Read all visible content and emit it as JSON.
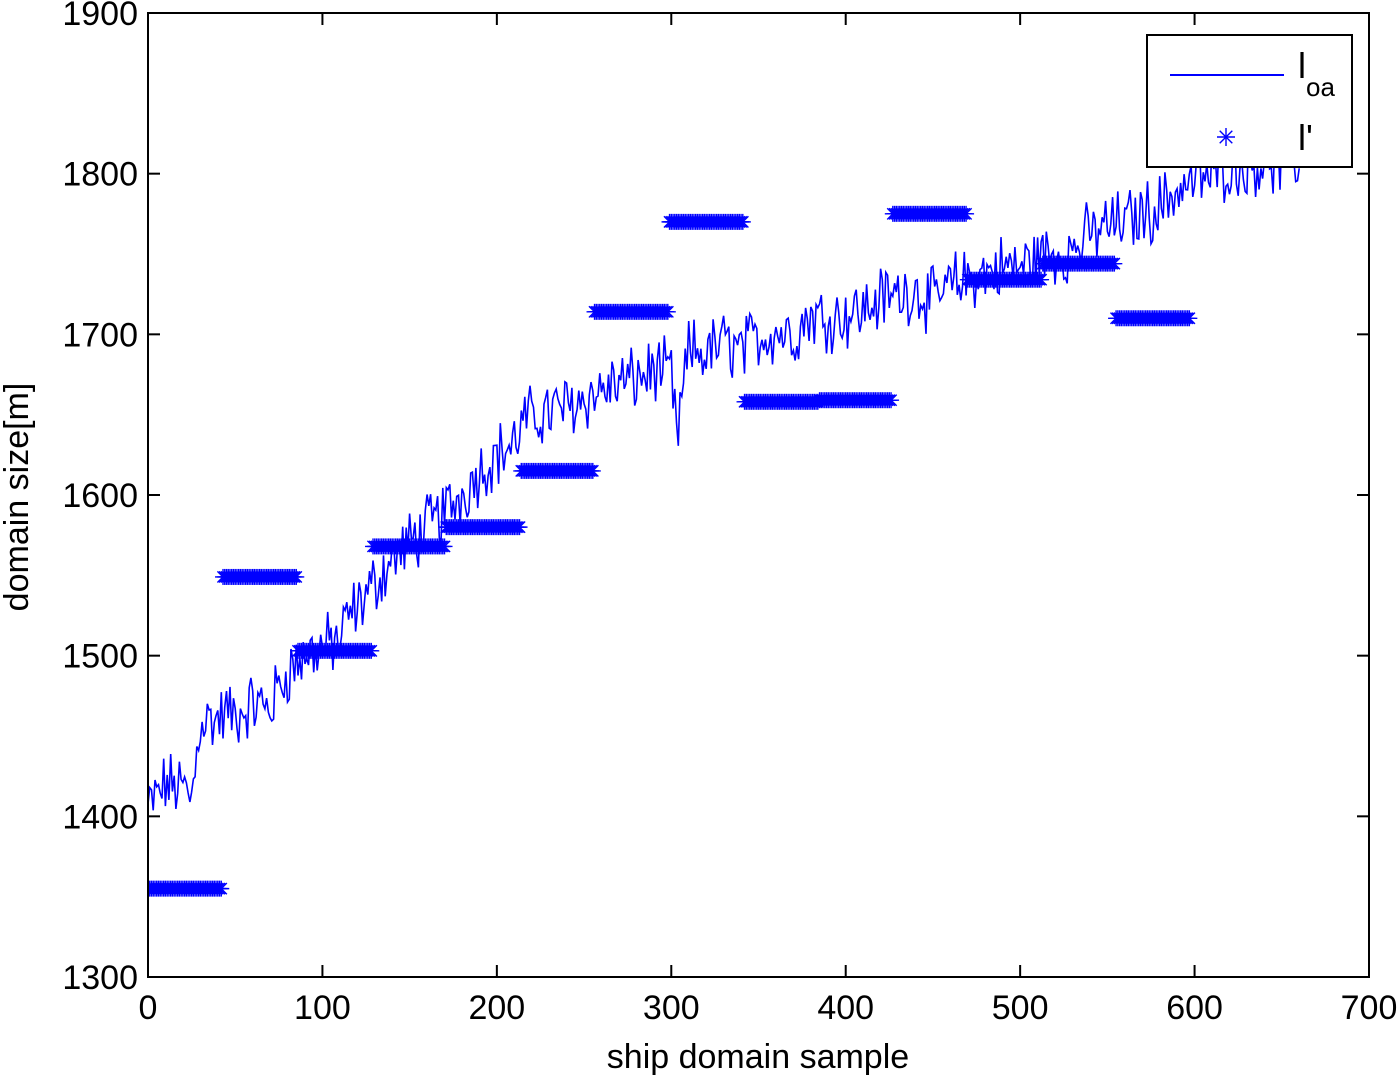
{
  "chart_data": {
    "type": "line",
    "title": "",
    "xlabel": "ship domain sample",
    "ylabel": "domain size[m]",
    "xlim": [
      0,
      700
    ],
    "ylim": [
      1300,
      1900
    ],
    "xticks": [
      0,
      100,
      200,
      300,
      400,
      500,
      600,
      700
    ],
    "yticks": [
      1300,
      1400,
      1500,
      1600,
      1700,
      1800,
      1900
    ],
    "grid": false,
    "legend_position": "top-right",
    "color": "#0000ff",
    "series": [
      {
        "name": "l_oa",
        "legend_main": "l",
        "legend_sub": "oa",
        "style": "line",
        "x": [
          0,
          10,
          20,
          25,
          30,
          40,
          45,
          50,
          60,
          70,
          75,
          80,
          90,
          100,
          110,
          115,
          120,
          130,
          140,
          150,
          160,
          170,
          180,
          190,
          200,
          210,
          215,
          220,
          230,
          240,
          250,
          260,
          270,
          280,
          290,
          300,
          303,
          310,
          320,
          330,
          340,
          350,
          360,
          370,
          380,
          390,
          400,
          410,
          420,
          430,
          440,
          450,
          460,
          470,
          480,
          490,
          500,
          510,
          520,
          530,
          540,
          550,
          560,
          570,
          580,
          590,
          600,
          610,
          620,
          630,
          640,
          650,
          660
        ],
        "y": [
          1405,
          1420,
          1418,
          1410,
          1460,
          1460,
          1465,
          1462,
          1470,
          1468,
          1480,
          1490,
          1500,
          1505,
          1510,
          1525,
          1530,
          1545,
          1560,
          1570,
          1580,
          1590,
          1600,
          1615,
          1625,
          1632,
          1645,
          1648,
          1652,
          1655,
          1660,
          1665,
          1670,
          1672,
          1678,
          1675,
          1635,
          1690,
          1688,
          1695,
          1690,
          1698,
          1702,
          1700,
          1712,
          1710,
          1712,
          1715,
          1722,
          1725,
          1728,
          1720,
          1730,
          1735,
          1738,
          1742,
          1742,
          1748,
          1750,
          1752,
          1762,
          1768,
          1770,
          1775,
          1780,
          1790,
          1795,
          1800,
          1805,
          1805,
          1808,
          1805,
          1808
        ]
      },
      {
        "name": "l'",
        "legend_main": "l'",
        "style": "markers",
        "marker": "asterisk",
        "segments": [
          {
            "x_start": 0,
            "x_end": 42,
            "y": 1355
          },
          {
            "x_start": 43,
            "x_end": 85,
            "y": 1549
          },
          {
            "x_start": 86,
            "x_end": 128,
            "y": 1503
          },
          {
            "x_start": 129,
            "x_end": 170,
            "y": 1568
          },
          {
            "x_start": 171,
            "x_end": 213,
            "y": 1580
          },
          {
            "x_start": 214,
            "x_end": 255,
            "y": 1615
          },
          {
            "x_start": 256,
            "x_end": 298,
            "y": 1714
          },
          {
            "x_start": 299,
            "x_end": 341,
            "y": 1770
          },
          {
            "x_start": 342,
            "x_end": 384,
            "y": 1658
          },
          {
            "x_start": 385,
            "x_end": 426,
            "y": 1659
          },
          {
            "x_start": 427,
            "x_end": 469,
            "y": 1775
          },
          {
            "x_start": 470,
            "x_end": 512,
            "y": 1734
          },
          {
            "x_start": 513,
            "x_end": 554,
            "y": 1744
          },
          {
            "x_start": 555,
            "x_end": 597,
            "y": 1710
          }
        ]
      }
    ]
  }
}
